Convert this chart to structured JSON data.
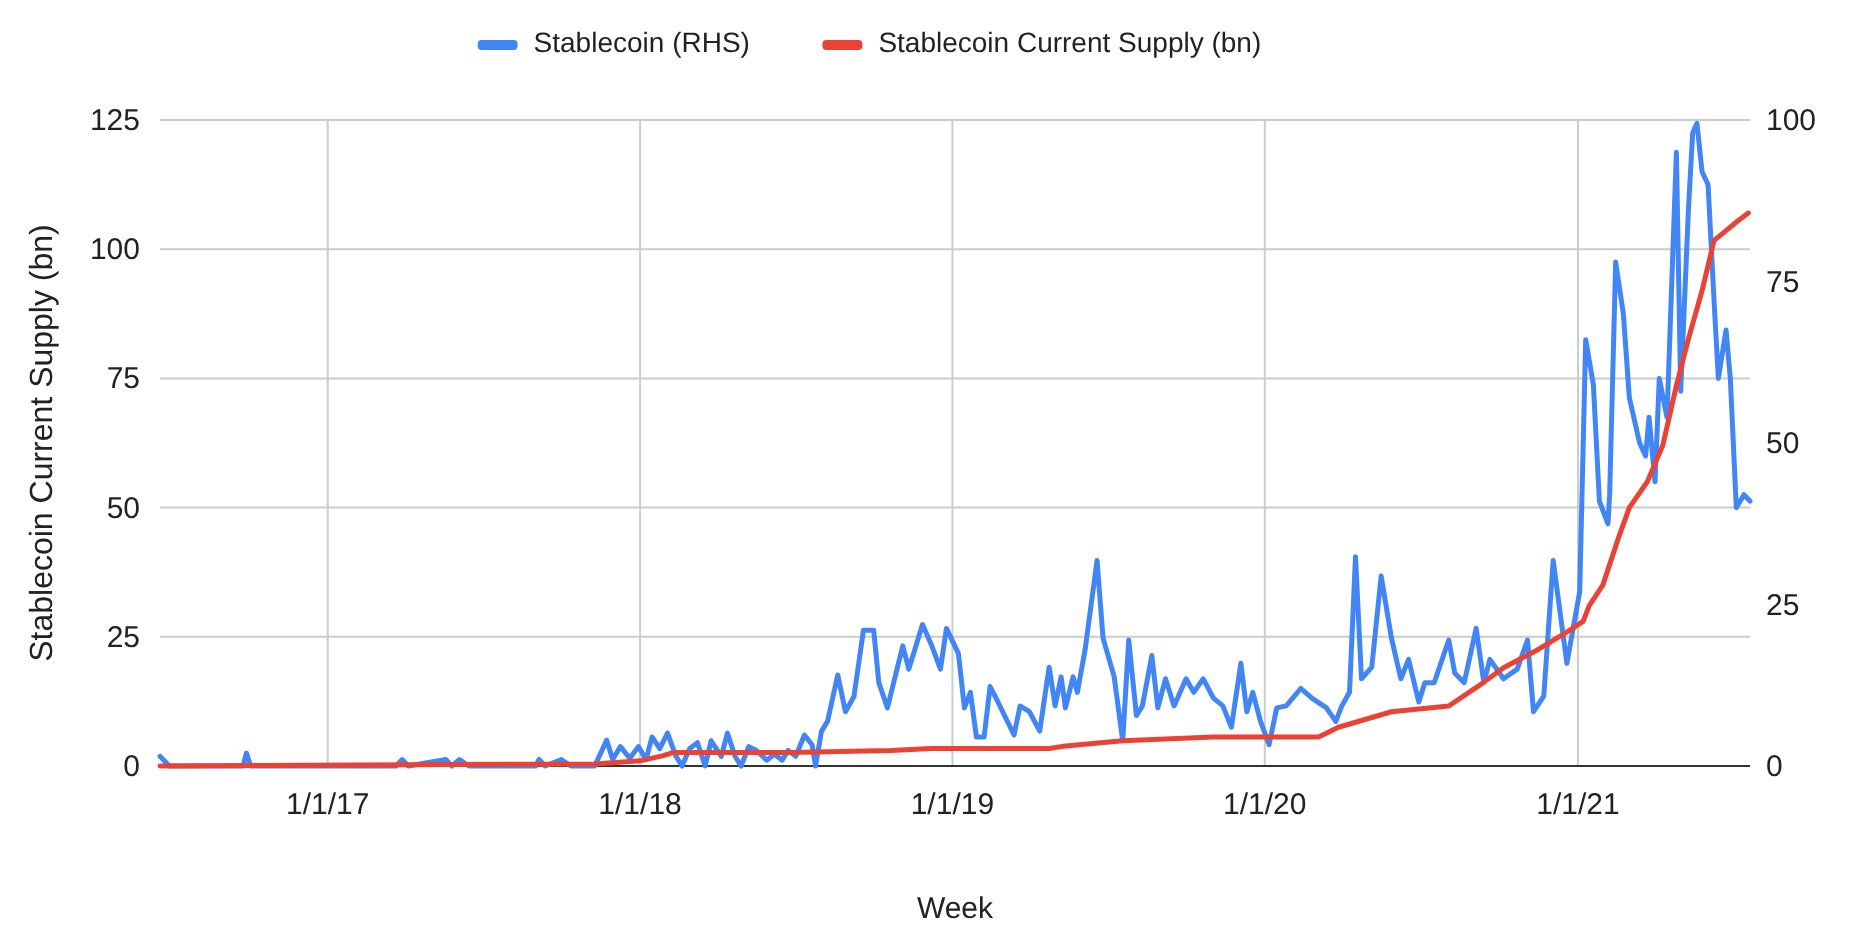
{
  "chart_data": {
    "type": "line",
    "xlabel": "Week",
    "ylabel": "Stablecoin Current Supply (bn)",
    "legend": "top",
    "grid": true,
    "xlim": [
      "2016-06-19",
      "2021-07-21"
    ],
    "xticks": [
      {
        "value": "2017-01-01",
        "label": "1/1/17"
      },
      {
        "value": "2018-01-01",
        "label": "1/1/18"
      },
      {
        "value": "2019-01-01",
        "label": "1/1/19"
      },
      {
        "value": "2020-01-01",
        "label": "1/1/20"
      },
      {
        "value": "2021-01-01",
        "label": "1/1/21"
      }
    ],
    "ylim": [
      0,
      125
    ],
    "yticks": [
      0,
      25,
      50,
      75,
      100,
      125
    ],
    "y2lim": [
      0,
      100
    ],
    "y2ticks": [
      0,
      25,
      50,
      75,
      100
    ],
    "series": [
      {
        "name": "Stablecoin (RHS)",
        "color": "#4285f4",
        "axis": "y2",
        "x": [
          "2016-06-19",
          "2016-06-30",
          "2016-09-24",
          "2016-09-28",
          "2016-10-03",
          "2017-03-22",
          "2017-03-29",
          "2017-04-05",
          "2017-05-19",
          "2017-05-26",
          "2017-06-04",
          "2017-06-15",
          "2017-09-01",
          "2017-09-05",
          "2017-09-12",
          "2017-10-01",
          "2017-10-12",
          "2017-11-09",
          "2017-11-23",
          "2017-11-30",
          "2017-12-09",
          "2017-12-20",
          "2017-12-30",
          "2018-01-08",
          "2018-01-15",
          "2018-01-24",
          "2018-02-02",
          "2018-02-12",
          "2018-02-19",
          "2018-02-28",
          "2018-03-09",
          "2018-03-18",
          "2018-03-25",
          "2018-04-06",
          "2018-04-13",
          "2018-04-22",
          "2018-04-29",
          "2018-05-08",
          "2018-05-17",
          "2018-05-29",
          "2018-06-07",
          "2018-06-16",
          "2018-06-23",
          "2018-07-02",
          "2018-07-12",
          "2018-07-21",
          "2018-07-25",
          "2018-08-01",
          "2018-08-08",
          "2018-08-20",
          "2018-08-29",
          "2018-09-08",
          "2018-09-19",
          "2018-10-01",
          "2018-10-07",
          "2018-10-17",
          "2018-10-26",
          "2018-11-04",
          "2018-11-11",
          "2018-11-18",
          "2018-11-27",
          "2018-12-07",
          "2018-12-18",
          "2018-12-25",
          "2019-01-08",
          "2019-01-15",
          "2019-01-22",
          "2019-01-29",
          "2019-02-07",
          "2019-02-14",
          "2019-02-21",
          "2019-03-14",
          "2019-03-21",
          "2019-04-01",
          "2019-04-13",
          "2019-04-24",
          "2019-05-01",
          "2019-05-08",
          "2019-05-13",
          "2019-05-22",
          "2019-05-27",
          "2019-06-05",
          "2019-06-19",
          "2019-06-26",
          "2019-07-09",
          "2019-07-19",
          "2019-07-26",
          "2019-08-04",
          "2019-08-11",
          "2019-08-22",
          "2019-08-29",
          "2019-09-07",
          "2019-09-17",
          "2019-10-01",
          "2019-10-10",
          "2019-10-21",
          "2019-11-02",
          "2019-11-13",
          "2019-11-23",
          "2019-12-04",
          "2019-12-11",
          "2019-12-18",
          "2019-12-27",
          "2020-01-06",
          "2020-01-15",
          "2020-01-26",
          "2020-02-12",
          "2020-02-25",
          "2020-03-13",
          "2020-03-24",
          "2020-03-31",
          "2020-04-09",
          "2020-04-16",
          "2020-04-23",
          "2020-05-05",
          "2020-05-16",
          "2020-05-28",
          "2020-06-08",
          "2020-06-17",
          "2020-06-29",
          "2020-07-06",
          "2020-07-17",
          "2020-08-03",
          "2020-08-10",
          "2020-08-21",
          "2020-09-04",
          "2020-09-13",
          "2020-09-20",
          "2020-10-06",
          "2020-10-22",
          "2020-11-03",
          "2020-11-10",
          "2020-11-22",
          "2020-12-03",
          "2020-12-19",
          "2021-01-03",
          "2021-01-10",
          "2021-01-19",
          "2021-01-26",
          "2021-02-05",
          "2021-02-07",
          "2021-02-14",
          "2021-02-23",
          "2021-03-02",
          "2021-03-14",
          "2021-03-21",
          "2021-03-25",
          "2021-04-01",
          "2021-04-06",
          "2021-04-15",
          "2021-04-26",
          "2021-05-01",
          "2021-05-10",
          "2021-05-15",
          "2021-05-20",
          "2021-05-26",
          "2021-06-02",
          "2021-06-09",
          "2021-06-14",
          "2021-06-23",
          "2021-06-28",
          "2021-07-05",
          "2021-07-14",
          "2021-07-21"
        ],
        "values": [
          1.5,
          0,
          0,
          2,
          0,
          0,
          1,
          0,
          1,
          0,
          1,
          0,
          0,
          1,
          0,
          1,
          0,
          0,
          4,
          1,
          3,
          1.2,
          3,
          1,
          4.5,
          2.7,
          5.1,
          1.5,
          0,
          2.7,
          3.6,
          0,
          3.9,
          1.5,
          5.1,
          1.5,
          0,
          3,
          2.4,
          0.9,
          1.8,
          0.9,
          2.4,
          1.5,
          4.8,
          3.3,
          0,
          5.4,
          6.9,
          14.1,
          8.4,
          10.8,
          21,
          21,
          12.9,
          9,
          13.8,
          18.6,
          15,
          18,
          21.9,
          18.9,
          15,
          21.3,
          17.4,
          9,
          11.4,
          4.5,
          4.5,
          12.3,
          10.5,
          4.8,
          9.3,
          8.4,
          5.4,
          15.3,
          9.3,
          13.8,
          9,
          13.8,
          11.4,
          18,
          31.8,
          19.8,
          13.8,
          3.9,
          19.5,
          7.8,
          9.3,
          17.1,
          9,
          13.5,
          9.3,
          13.5,
          11.4,
          13.5,
          10.5,
          9.3,
          6,
          15.9,
          8.4,
          11.4,
          6.9,
          3.3,
          9,
          9.3,
          12,
          10.5,
          9,
          6.9,
          9.3,
          11.4,
          32.4,
          13.5,
          15.3,
          29.4,
          19.8,
          13.5,
          16.5,
          9.9,
          12.9,
          12.9,
          19.5,
          14.4,
          12.9,
          21.3,
          12.9,
          16.5,
          13.5,
          15,
          19.5,
          8.4,
          10.8,
          31.8,
          15.9,
          27,
          66,
          59,
          41,
          37.5,
          42,
          78,
          70,
          57,
          50,
          48,
          54,
          44,
          60,
          54,
          95,
          58,
          86,
          98,
          99.5,
          92,
          90,
          72,
          60,
          67.5,
          60,
          40,
          42,
          41
        ]
      },
      {
        "name": "Stablecoin Current Supply (bn)",
        "color": "#ea4335",
        "x": [
          "2016-06-19",
          "2017-11-09",
          "2018-01-01",
          "2018-01-28",
          "2018-02-08",
          "2018-06-25",
          "2018-10-21",
          "2018-12-07",
          "2019-04-24",
          "2019-05-10",
          "2019-07-19",
          "2019-11-02",
          "2020-03-04",
          "2020-03-27",
          "2020-05-28",
          "2020-08-03",
          "2020-09-06",
          "2020-10-06",
          "2020-11-15",
          "2020-12-15",
          "2021-01-07",
          "2021-01-14",
          "2021-01-30",
          "2021-02-17",
          "2021-03-02",
          "2021-03-23",
          "2021-04-10",
          "2021-04-26",
          "2021-05-10",
          "2021-05-26",
          "2021-06-09",
          "2021-06-23",
          "2021-07-07",
          "2021-07-19"
        ],
        "values": [
          0,
          0.4,
          1,
          2,
          2.6,
          2.6,
          3,
          3.4,
          3.4,
          3.8,
          4.9,
          5.6,
          5.6,
          7.5,
          10.5,
          11.6,
          15.4,
          19,
          22.5,
          25.5,
          28,
          31,
          35,
          44,
          50,
          55,
          62,
          73.6,
          82.6,
          92,
          101.7,
          103.6,
          105.5,
          107
        ]
      }
    ]
  }
}
